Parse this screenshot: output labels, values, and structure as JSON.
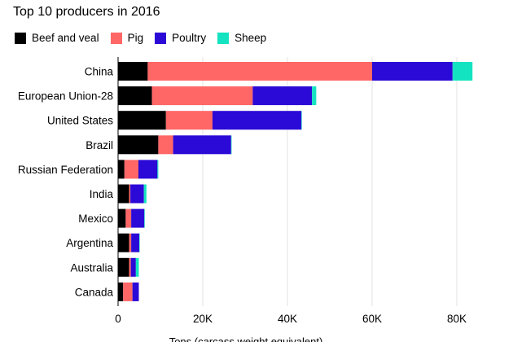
{
  "chart_data": {
    "type": "bar",
    "orientation": "horizontal",
    "stacked": true,
    "subtitle": "Top 10 producers in 2016",
    "xlabel": "Tons (carcass weight equivalent)",
    "xlim": [
      0,
      84000
    ],
    "xticks": [
      0,
      20000,
      40000,
      60000,
      80000
    ],
    "xtick_labels": [
      "0",
      "20K",
      "40K",
      "60K",
      "80K"
    ],
    "grid": true,
    "legend_position": "top-left",
    "categories": [
      "China",
      "European Union-28",
      "United States",
      "Brazil",
      "Russian Federation",
      "India",
      "Mexico",
      "Argentina",
      "Australia",
      "Canada"
    ],
    "series": [
      {
        "name": "Beef and veal",
        "color": "#000000",
        "values": [
          7000,
          8000,
          11300,
          9500,
          1500,
          2600,
          1800,
          2600,
          2600,
          1200
        ]
      },
      {
        "name": "Pig",
        "color": "#ff6666",
        "values": [
          53000,
          23800,
          11000,
          3500,
          3300,
          300,
          1300,
          500,
          400,
          2200
        ]
      },
      {
        "name": "Poultry",
        "color": "#2b09d6",
        "values": [
          19000,
          14000,
          21000,
          13700,
          4500,
          3200,
          3100,
          1900,
          1200,
          1500
        ]
      },
      {
        "name": "Sheep",
        "color": "#14e3c1",
        "values": [
          4700,
          1000,
          100,
          100,
          200,
          600,
          100,
          100,
          700,
          0
        ]
      }
    ]
  }
}
